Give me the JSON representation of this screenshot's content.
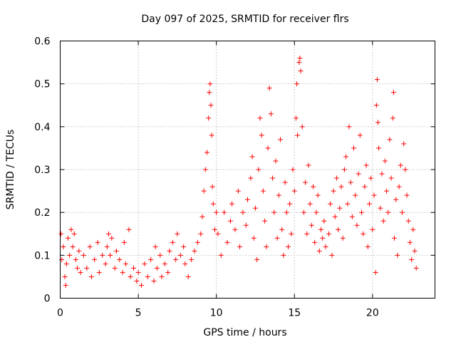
{
  "chart_data": {
    "type": "scatter",
    "title": "Day 097 of 2025, SRMTID for receiver flrs",
    "xlabel": "GPS time / hours",
    "ylabel": "SRMTID / TECUs",
    "xlim": [
      0,
      24
    ],
    "ylim": [
      0,
      0.6
    ],
    "xticks": [
      0,
      5,
      10,
      15,
      20
    ],
    "xtick_labels": [
      "0",
      "5",
      "10",
      "15",
      "20"
    ],
    "yticks": [
      0,
      0.1,
      0.2,
      0.3,
      0.4,
      0.5,
      0.6
    ],
    "ytick_labels": [
      "0",
      "0.1",
      "0.2",
      "0.3",
      "0.4",
      "0.5",
      "0.6"
    ],
    "grid": true,
    "marker": "+",
    "color": "#ff0000",
    "series": [
      {
        "name": "SRMTID",
        "points": [
          [
            0.05,
            0.15
          ],
          [
            0.1,
            0.09
          ],
          [
            0.2,
            0.12
          ],
          [
            0.3,
            0.05
          ],
          [
            0.35,
            0.03
          ],
          [
            0.4,
            0.08
          ],
          [
            0.5,
            0.14
          ],
          [
            0.6,
            0.1
          ],
          [
            0.7,
            0.16
          ],
          [
            0.8,
            0.12
          ],
          [
            0.9,
            0.15
          ],
          [
            1.0,
            0.09
          ],
          [
            1.1,
            0.07
          ],
          [
            1.2,
            0.11
          ],
          [
            1.3,
            0.06
          ],
          [
            1.5,
            0.1
          ],
          [
            1.7,
            0.07
          ],
          [
            1.9,
            0.12
          ],
          [
            2.0,
            0.05
          ],
          [
            2.2,
            0.09
          ],
          [
            2.4,
            0.13
          ],
          [
            2.5,
            0.06
          ],
          [
            2.7,
            0.1
          ],
          [
            2.9,
            0.08
          ],
          [
            3.0,
            0.12
          ],
          [
            3.1,
            0.15
          ],
          [
            3.2,
            0.1
          ],
          [
            3.3,
            0.14
          ],
          [
            3.5,
            0.07
          ],
          [
            3.6,
            0.11
          ],
          [
            3.8,
            0.09
          ],
          [
            4.0,
            0.06
          ],
          [
            4.1,
            0.13
          ],
          [
            4.2,
            0.08
          ],
          [
            4.4,
            0.16
          ],
          [
            4.5,
            0.05
          ],
          [
            4.7,
            0.07
          ],
          [
            4.9,
            0.04
          ],
          [
            5.0,
            0.06
          ],
          [
            5.2,
            0.03
          ],
          [
            5.4,
            0.08
          ],
          [
            5.6,
            0.05
          ],
          [
            5.8,
            0.09
          ],
          [
            6.0,
            0.04
          ],
          [
            6.1,
            0.12
          ],
          [
            6.2,
            0.07
          ],
          [
            6.4,
            0.1
          ],
          [
            6.5,
            0.05
          ],
          [
            6.7,
            0.08
          ],
          [
            6.9,
            0.06
          ],
          [
            7.0,
            0.11
          ],
          [
            7.2,
            0.13
          ],
          [
            7.4,
            0.09
          ],
          [
            7.5,
            0.15
          ],
          [
            7.7,
            0.1
          ],
          [
            7.9,
            0.12
          ],
          [
            8.0,
            0.08
          ],
          [
            8.2,
            0.05
          ],
          [
            8.4,
            0.09
          ],
          [
            8.6,
            0.11
          ],
          [
            8.8,
            0.13
          ],
          [
            9.0,
            0.15
          ],
          [
            9.1,
            0.19
          ],
          [
            9.2,
            0.25
          ],
          [
            9.3,
            0.3
          ],
          [
            9.4,
            0.34
          ],
          [
            9.5,
            0.42
          ],
          [
            9.55,
            0.48
          ],
          [
            9.6,
            0.5
          ],
          [
            9.65,
            0.45
          ],
          [
            9.7,
            0.38
          ],
          [
            9.75,
            0.26
          ],
          [
            9.8,
            0.22
          ],
          [
            9.9,
            0.16
          ],
          [
            10.0,
            0.2
          ],
          [
            10.1,
            0.15
          ],
          [
            10.3,
            0.1
          ],
          [
            10.5,
            0.2
          ],
          [
            10.7,
            0.13
          ],
          [
            10.9,
            0.18
          ],
          [
            11.0,
            0.22
          ],
          [
            11.2,
            0.16
          ],
          [
            11.4,
            0.25
          ],
          [
            11.5,
            0.12
          ],
          [
            11.7,
            0.2
          ],
          [
            11.9,
            0.17
          ],
          [
            12.0,
            0.23
          ],
          [
            12.2,
            0.28
          ],
          [
            12.3,
            0.33
          ],
          [
            12.4,
            0.14
          ],
          [
            12.5,
            0.21
          ],
          [
            12.6,
            0.09
          ],
          [
            12.7,
            0.3
          ],
          [
            12.8,
            0.42
          ],
          [
            12.9,
            0.38
          ],
          [
            13.0,
            0.25
          ],
          [
            13.1,
            0.18
          ],
          [
            13.2,
            0.12
          ],
          [
            13.3,
            0.35
          ],
          [
            13.4,
            0.49
          ],
          [
            13.5,
            0.43
          ],
          [
            13.6,
            0.28
          ],
          [
            13.7,
            0.2
          ],
          [
            13.8,
            0.32
          ],
          [
            13.9,
            0.14
          ],
          [
            14.0,
            0.24
          ],
          [
            14.1,
            0.37
          ],
          [
            14.2,
            0.16
          ],
          [
            14.3,
            0.1
          ],
          [
            14.4,
            0.27
          ],
          [
            14.5,
            0.2
          ],
          [
            14.6,
            0.12
          ],
          [
            14.7,
            0.22
          ],
          [
            14.8,
            0.15
          ],
          [
            14.9,
            0.3
          ],
          [
            15.0,
            0.25
          ],
          [
            15.1,
            0.42
          ],
          [
            15.15,
            0.5
          ],
          [
            15.2,
            0.38
          ],
          [
            15.3,
            0.55
          ],
          [
            15.35,
            0.56
          ],
          [
            15.4,
            0.53
          ],
          [
            15.5,
            0.4
          ],
          [
            15.6,
            0.2
          ],
          [
            15.7,
            0.27
          ],
          [
            15.8,
            0.15
          ],
          [
            15.9,
            0.31
          ],
          [
            16.0,
            0.22
          ],
          [
            16.1,
            0.17
          ],
          [
            16.2,
            0.26
          ],
          [
            16.3,
            0.13
          ],
          [
            16.4,
            0.2
          ],
          [
            16.5,
            0.24
          ],
          [
            16.6,
            0.11
          ],
          [
            16.7,
            0.16
          ],
          [
            16.8,
            0.14
          ],
          [
            16.9,
            0.18
          ],
          [
            17.0,
            0.12
          ],
          [
            17.2,
            0.15
          ],
          [
            17.3,
            0.22
          ],
          [
            17.4,
            0.1
          ],
          [
            17.5,
            0.25
          ],
          [
            17.6,
            0.19
          ],
          [
            17.7,
            0.28
          ],
          [
            17.8,
            0.16
          ],
          [
            17.9,
            0.21
          ],
          [
            18.0,
            0.26
          ],
          [
            18.1,
            0.14
          ],
          [
            18.2,
            0.3
          ],
          [
            18.3,
            0.33
          ],
          [
            18.4,
            0.22
          ],
          [
            18.5,
            0.4
          ],
          [
            18.6,
            0.27
          ],
          [
            18.7,
            0.19
          ],
          [
            18.8,
            0.35
          ],
          [
            18.9,
            0.24
          ],
          [
            19.0,
            0.17
          ],
          [
            19.1,
            0.29
          ],
          [
            19.2,
            0.38
          ],
          [
            19.3,
            0.2
          ],
          [
            19.4,
            0.15
          ],
          [
            19.5,
            0.26
          ],
          [
            19.6,
            0.31
          ],
          [
            19.7,
            0.12
          ],
          [
            19.8,
            0.22
          ],
          [
            19.9,
            0.28
          ],
          [
            20.0,
            0.16
          ],
          [
            20.1,
            0.24
          ],
          [
            20.2,
            0.06
          ],
          [
            20.25,
            0.45
          ],
          [
            20.3,
            0.51
          ],
          [
            20.35,
            0.41
          ],
          [
            20.4,
            0.35
          ],
          [
            20.5,
            0.21
          ],
          [
            20.6,
            0.29
          ],
          [
            20.7,
            0.18
          ],
          [
            20.8,
            0.32
          ],
          [
            20.9,
            0.25
          ],
          [
            21.0,
            0.2
          ],
          [
            21.1,
            0.37
          ],
          [
            21.2,
            0.28
          ],
          [
            21.3,
            0.42
          ],
          [
            21.35,
            0.48
          ],
          [
            21.4,
            0.14
          ],
          [
            21.5,
            0.23
          ],
          [
            21.6,
            0.1
          ],
          [
            21.7,
            0.26
          ],
          [
            21.8,
            0.31
          ],
          [
            21.9,
            0.2
          ],
          [
            22.0,
            0.36
          ],
          [
            22.1,
            0.3
          ],
          [
            22.2,
            0.24
          ],
          [
            22.3,
            0.18
          ],
          [
            22.4,
            0.13
          ],
          [
            22.5,
            0.09
          ],
          [
            22.6,
            0.16
          ],
          [
            22.7,
            0.11
          ],
          [
            22.8,
            0.07
          ]
        ]
      }
    ]
  }
}
